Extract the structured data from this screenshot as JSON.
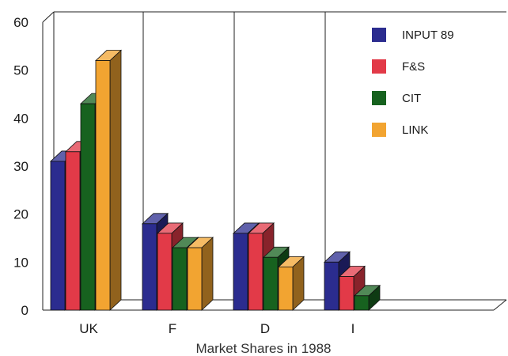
{
  "chart_data": {
    "type": "bar",
    "title": "",
    "xlabel": "Market Shares in 1988",
    "ylabel": "",
    "categories": [
      "UK",
      "F",
      "D",
      "I"
    ],
    "ylim": [
      0,
      60
    ],
    "yticks": [
      0,
      10,
      20,
      30,
      40,
      50,
      60
    ],
    "grid": false,
    "legend": "top-right",
    "style": "3d",
    "series": [
      {
        "name": "INPUT 89",
        "color": "#2b2c8f",
        "values": [
          31,
          18,
          16,
          10
        ]
      },
      {
        "name": "F&S",
        "color": "#e23a48",
        "values": [
          33,
          16,
          16,
          7
        ]
      },
      {
        "name": "CIT",
        "color": "#17621f",
        "values": [
          43,
          13,
          11,
          3
        ]
      },
      {
        "name": "LINK",
        "color": "#f2a431",
        "values": [
          52,
          13,
          9,
          null
        ]
      }
    ]
  }
}
